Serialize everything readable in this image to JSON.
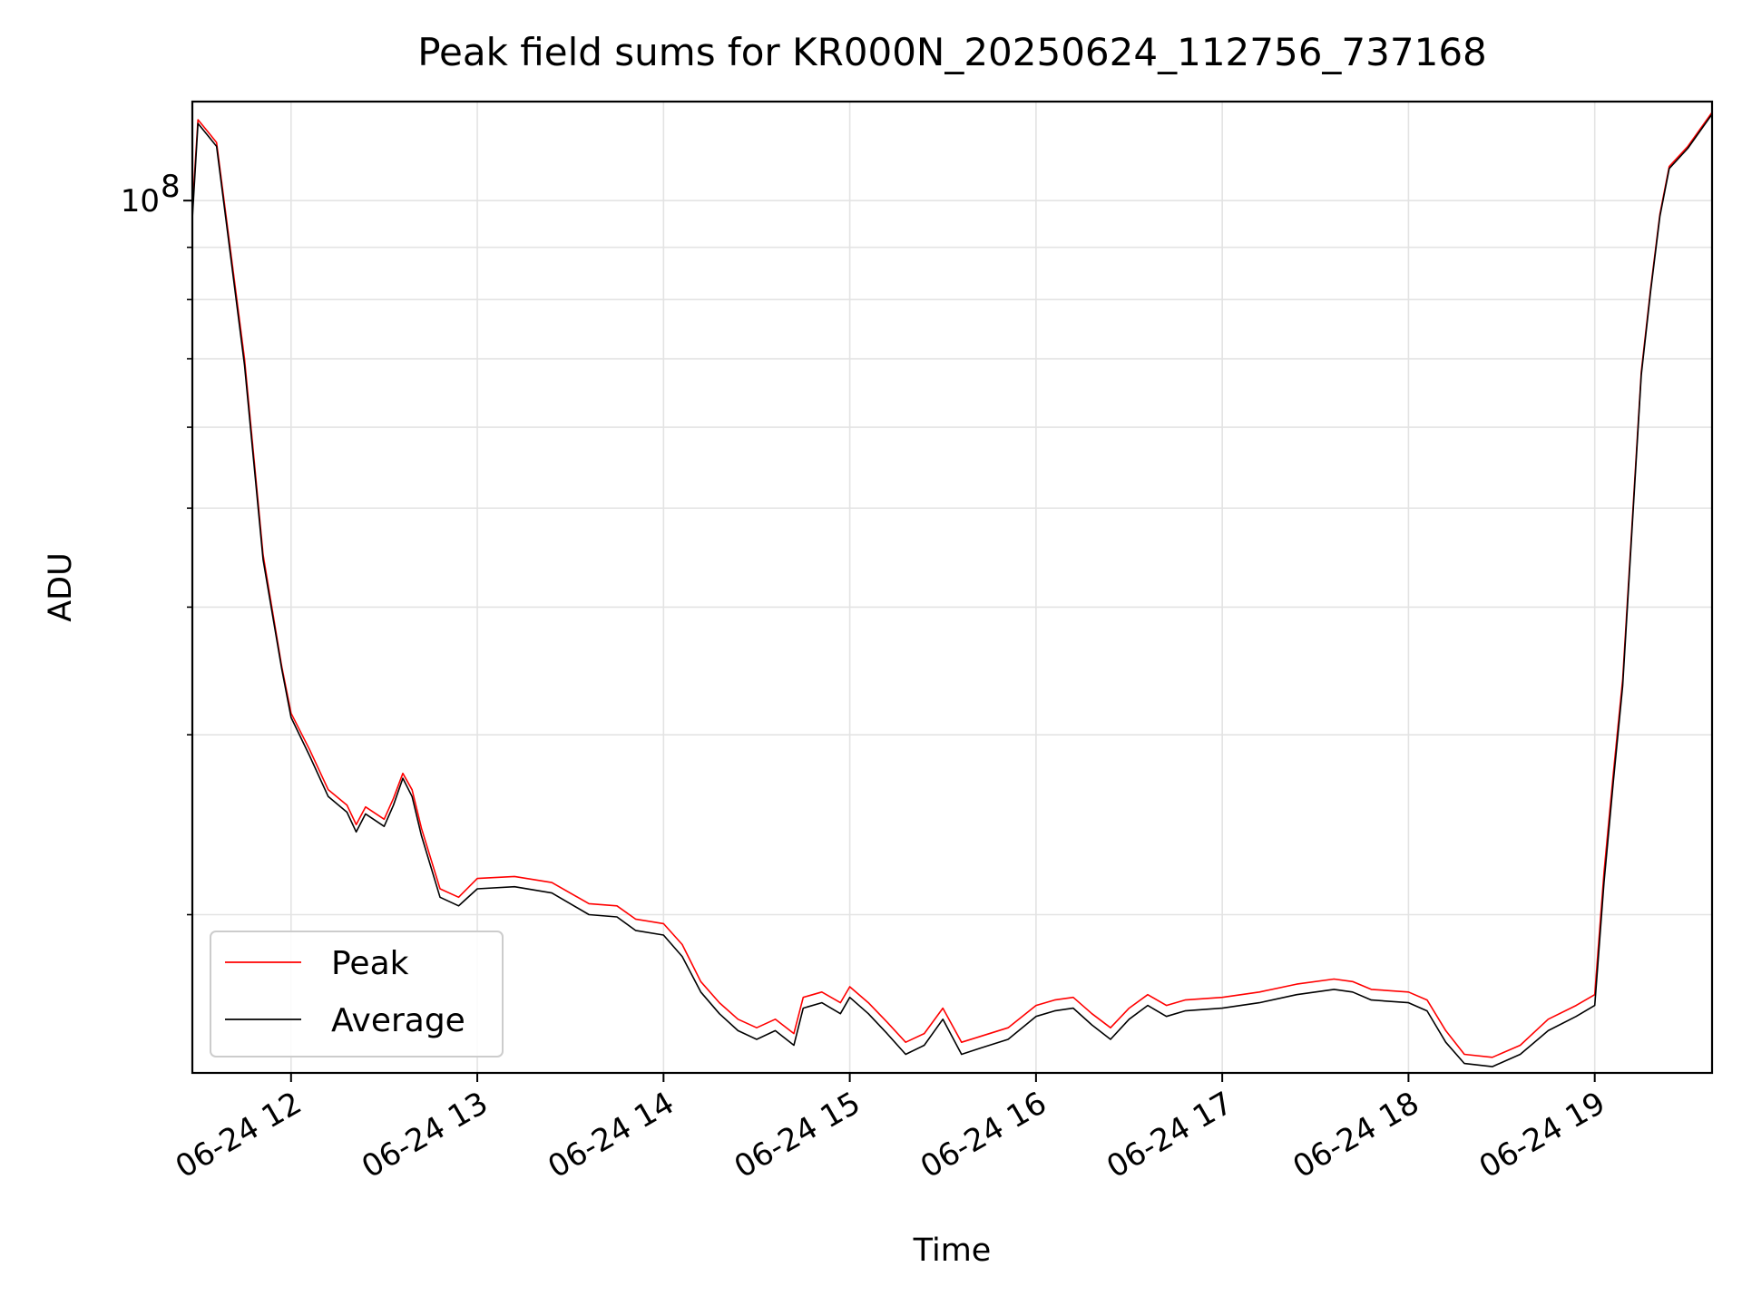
{
  "chart_data": {
    "type": "line",
    "title": "Peak field sums for KR000N_20250624_112756_737168",
    "xlabel": "Time",
    "ylabel": "ADU",
    "x_range_hours": [
      11.47,
      19.63
    ],
    "x_ticks": [
      {
        "hour": 12,
        "label": "06-24 12"
      },
      {
        "hour": 13,
        "label": "06-24 13"
      },
      {
        "hour": 14,
        "label": "06-24 14"
      },
      {
        "hour": 15,
        "label": "06-24 15"
      },
      {
        "hour": 16,
        "label": "06-24 16"
      },
      {
        "hour": 17,
        "label": "06-24 17"
      },
      {
        "hour": 18,
        "label": "06-24 18"
      },
      {
        "hour": 19,
        "label": "06-24 19"
      }
    ],
    "y_scale": "log",
    "y_range": [
      14000000,
      125000000
    ],
    "y_major_ticks": [
      {
        "value": 100000000,
        "base": "10",
        "exp": "8"
      }
    ],
    "y_minor_ticks": [
      20000000,
      30000000,
      40000000,
      50000000,
      60000000,
      70000000,
      80000000,
      90000000
    ],
    "grid": true,
    "legend_position": "lower-left",
    "series": [
      {
        "name": "Peak",
        "color": "#ff0000",
        "x": [
          11.47,
          11.5,
          11.55,
          11.6,
          11.65,
          11.75,
          11.85,
          11.95,
          12.0,
          12.1,
          12.2,
          12.3,
          12.35,
          12.4,
          12.5,
          12.55,
          12.6,
          12.65,
          12.7,
          12.8,
          12.9,
          13.0,
          13.2,
          13.4,
          13.6,
          13.75,
          13.85,
          14.0,
          14.1,
          14.2,
          14.3,
          14.4,
          14.5,
          14.6,
          14.7,
          14.75,
          14.85,
          14.95,
          15.0,
          15.1,
          15.2,
          15.3,
          15.4,
          15.5,
          15.6,
          15.7,
          15.85,
          16.0,
          16.1,
          16.2,
          16.3,
          16.4,
          16.5,
          16.6,
          16.7,
          16.8,
          17.0,
          17.2,
          17.4,
          17.6,
          17.7,
          17.8,
          18.0,
          18.1,
          18.2,
          18.3,
          18.45,
          18.6,
          18.75,
          18.9,
          19.0,
          19.05,
          19.1,
          19.15,
          19.2,
          19.25,
          19.3,
          19.35,
          19.4,
          19.5,
          19.63
        ],
        "values": [
          98000000,
          120000000,
          117000000,
          114000000,
          97000000,
          70000000,
          45000000,
          35000000,
          31500000,
          29000000,
          26500000,
          25600000,
          24500000,
          25500000,
          24800000,
          26000000,
          27500000,
          26500000,
          24300000,
          21200000,
          20800000,
          21700000,
          21800000,
          21500000,
          20500000,
          20400000,
          19800000,
          19600000,
          18700000,
          17200000,
          16400000,
          15800000,
          15500000,
          15800000,
          15300000,
          16600000,
          16800000,
          16400000,
          17000000,
          16400000,
          15700000,
          15000000,
          15300000,
          16200000,
          15000000,
          15200000,
          15500000,
          16300000,
          16500000,
          16600000,
          16000000,
          15500000,
          16200000,
          16700000,
          16300000,
          16500000,
          16600000,
          16800000,
          17100000,
          17300000,
          17200000,
          16900000,
          16800000,
          16500000,
          15400000,
          14600000,
          14500000,
          14900000,
          15800000,
          16300000,
          16700000,
          22000000,
          27500000,
          34000000,
          48000000,
          68000000,
          82000000,
          97000000,
          108000000,
          113000000,
          122000000
        ]
      },
      {
        "name": "Average",
        "color": "#000000",
        "x": [
          11.47,
          11.5,
          11.55,
          11.6,
          11.65,
          11.75,
          11.85,
          11.95,
          12.0,
          12.1,
          12.2,
          12.3,
          12.35,
          12.4,
          12.5,
          12.55,
          12.6,
          12.65,
          12.7,
          12.8,
          12.9,
          13.0,
          13.2,
          13.4,
          13.6,
          13.75,
          13.85,
          14.0,
          14.1,
          14.2,
          14.3,
          14.4,
          14.5,
          14.6,
          14.7,
          14.75,
          14.85,
          14.95,
          15.0,
          15.1,
          15.2,
          15.3,
          15.4,
          15.5,
          15.6,
          15.7,
          15.85,
          16.0,
          16.1,
          16.2,
          16.3,
          16.4,
          16.5,
          16.6,
          16.7,
          16.8,
          17.0,
          17.2,
          17.4,
          17.6,
          17.7,
          17.8,
          18.0,
          18.1,
          18.2,
          18.3,
          18.45,
          18.6,
          18.75,
          18.9,
          19.0,
          19.05,
          19.1,
          19.15,
          19.2,
          19.25,
          19.3,
          19.35,
          19.4,
          19.5,
          19.63
        ],
        "values": [
          96000000,
          119000000,
          116000000,
          113000000,
          96000000,
          69000000,
          44500000,
          34800000,
          31200000,
          28600000,
          26100000,
          25200000,
          24100000,
          25100000,
          24400000,
          25600000,
          27200000,
          26100000,
          23900000,
          20800000,
          20400000,
          21200000,
          21300000,
          21000000,
          20000000,
          19900000,
          19300000,
          19100000,
          18200000,
          16800000,
          16000000,
          15400000,
          15100000,
          15400000,
          14900000,
          16200000,
          16400000,
          16000000,
          16600000,
          16000000,
          15300000,
          14600000,
          14900000,
          15800000,
          14600000,
          14800000,
          15100000,
          15900000,
          16100000,
          16200000,
          15600000,
          15100000,
          15800000,
          16300000,
          15900000,
          16100000,
          16200000,
          16400000,
          16700000,
          16900000,
          16800000,
          16500000,
          16400000,
          16100000,
          15000000,
          14300000,
          14200000,
          14600000,
          15400000,
          15900000,
          16300000,
          21500000,
          27000000,
          33500000,
          47500000,
          67500000,
          81500000,
          96500000,
          107500000,
          112500000,
          121500000
        ]
      }
    ]
  }
}
